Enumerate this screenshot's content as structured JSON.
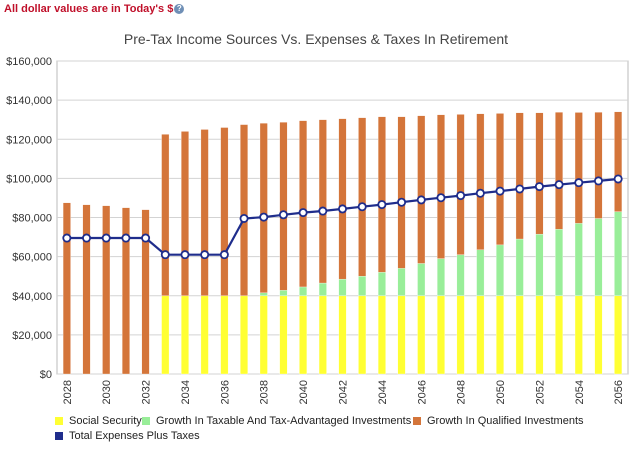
{
  "note": "All dollar values are in Today's $",
  "help_icon": "question-icon",
  "chart_data": {
    "type": "bar",
    "title": "Pre-Tax Income Sources Vs. Expenses & Taxes In Retirement",
    "xlabel": "",
    "ylabel": "",
    "ylim": [
      0,
      160000
    ],
    "yticks": [
      0,
      20000,
      40000,
      60000,
      80000,
      100000,
      120000,
      140000,
      160000
    ],
    "ytick_labels": [
      "$0",
      "$20,000",
      "$40,000",
      "$60,000",
      "$80,000",
      "$100,000",
      "$120,000",
      "$140,000",
      "$160,000"
    ],
    "grid": true,
    "legend": "bottom",
    "categories": [
      "2028",
      "2029",
      "2030",
      "2031",
      "2032",
      "2033",
      "2034",
      "2035",
      "2036",
      "2037",
      "2038",
      "2039",
      "2040",
      "2041",
      "2042",
      "2043",
      "2044",
      "2045",
      "2046",
      "2047",
      "2048",
      "2049",
      "2050",
      "2051",
      "2052",
      "2053",
      "2054",
      "2055",
      "2056"
    ],
    "tick_labels": [
      "2028",
      "",
      "2030",
      "",
      "2032",
      "",
      "2034",
      "",
      "2036",
      "",
      "2038",
      "",
      "2040",
      "",
      "2042",
      "",
      "2044",
      "",
      "2046",
      "",
      "2048",
      "",
      "2050",
      "",
      "2052",
      "",
      "2054",
      "",
      "2056"
    ],
    "series": [
      {
        "name": "Social Security",
        "type": "stacked-bar",
        "color": "#ffff33",
        "values": [
          0,
          0,
          0,
          0,
          0,
          40000,
          40000,
          40000,
          40000,
          40000,
          40000,
          40000,
          40000,
          40000,
          40000,
          40000,
          40000,
          40000,
          40000,
          40000,
          40000,
          40000,
          40000,
          40000,
          40000,
          40000,
          40000,
          40000,
          40000
        ]
      },
      {
        "name": "Growth In Taxable And Tax-Advantaged Investments",
        "type": "stacked-bar",
        "color": "#99ee99",
        "values": [
          0,
          0,
          0,
          0,
          0,
          0,
          0,
          0,
          0,
          0,
          1500,
          2800,
          4500,
          6500,
          8500,
          10000,
          12000,
          14000,
          16500,
          19000,
          21000,
          23500,
          26000,
          29000,
          31500,
          34000,
          37000,
          39500,
          43000
        ]
      },
      {
        "name": "Growth In Qualified Investments",
        "type": "stacked-bar",
        "color": "#d4753a",
        "values": [
          87500,
          86500,
          86000,
          85000,
          84000,
          82500,
          84000,
          85000,
          86000,
          87500,
          86700,
          85900,
          85000,
          83500,
          82000,
          81000,
          79500,
          77500,
          75500,
          73500,
          71700,
          69500,
          67200,
          64500,
          62000,
          59800,
          56700,
          54300,
          51000
        ]
      },
      {
        "name": "Total Expenses Plus Taxes",
        "type": "line",
        "color": "#1f2d8c",
        "values": [
          69500,
          69500,
          69500,
          69500,
          69500,
          61000,
          61000,
          61000,
          61000,
          79500,
          80200,
          81400,
          82500,
          83300,
          84400,
          85500,
          86600,
          87800,
          89000,
          90100,
          91200,
          92400,
          93500,
          94600,
          95800,
          96800,
          97800,
          98700,
          99700
        ]
      }
    ]
  }
}
